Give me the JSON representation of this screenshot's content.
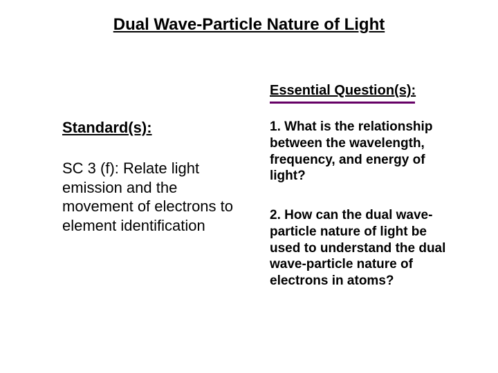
{
  "title": "Dual Wave-Particle Nature of Light",
  "essential_questions": {
    "heading": "Essential Question(s):",
    "q1": "1. What is the relationship between the wavelength, frequency, and energy of light?",
    "q2": "2. How can the dual wave-particle nature of light be used to understand the dual wave-particle nature of electrons in atoms?"
  },
  "standards": {
    "heading": "Standard(s):",
    "body": "SC 3 (f): Relate light emission and the movement of electrons to element identification"
  },
  "colors": {
    "title_color": "#000000",
    "text_color": "#000000",
    "accent_underline": "#660066",
    "background": "#ffffff"
  },
  "typography": {
    "title_fontsize": 24,
    "heading_fontsize": 22,
    "eq_heading_fontsize": 20,
    "body_fontsize": 22,
    "eq_body_fontsize": 19,
    "font_family": "Arial"
  }
}
